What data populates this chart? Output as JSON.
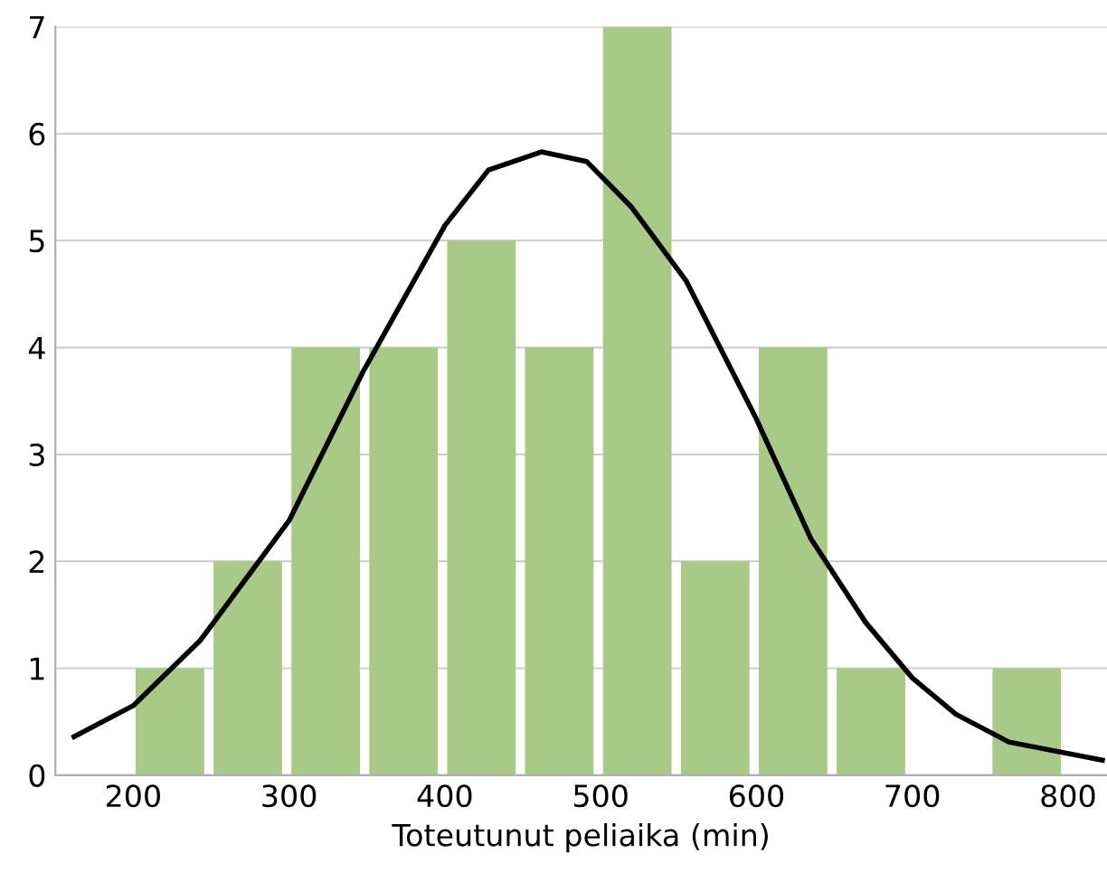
{
  "chart_data": {
    "type": "histogram",
    "xlabel": "Toteutunut peliaika (min)",
    "bins": [
      200,
      250,
      300,
      350,
      400,
      450,
      500,
      550,
      600,
      650,
      700,
      750,
      800
    ],
    "values": [
      1,
      2,
      4,
      4,
      5,
      4,
      7,
      2,
      4,
      1,
      0,
      1
    ],
    "color": "#a9c986",
    "series": [
      {
        "type": "line",
        "color": "#000000",
        "x": [
          162,
          200,
          243,
          300,
          347,
          400,
          428,
          462,
          491,
          520,
          555,
          600,
          635,
          670,
          700,
          728,
          762,
          822
        ],
        "values": [
          0.36,
          0.65,
          1.26,
          2.38,
          3.76,
          5.14,
          5.66,
          5.83,
          5.74,
          5.31,
          4.62,
          3.33,
          2.21,
          1.43,
          0.91,
          0.57,
          0.31,
          0.14
        ]
      }
    ],
    "xlim": [
      150,
      825
    ],
    "ylim": [
      0,
      7
    ],
    "xticks": [
      200,
      300,
      400,
      500,
      600,
      700,
      800
    ],
    "yticks": [
      0,
      1,
      2,
      3,
      4,
      5,
      6,
      7
    ],
    "grid": "y"
  }
}
